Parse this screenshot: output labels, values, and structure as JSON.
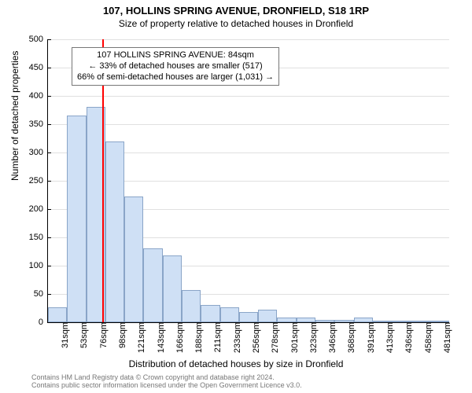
{
  "title": "107, HOLLINS SPRING AVENUE, DRONFIELD, S18 1RP",
  "subtitle": "Size of property relative to detached houses in Dronfield",
  "y_axis": {
    "label": "Number of detached properties",
    "min": 0,
    "max": 500,
    "tick_step": 50,
    "ticks": [
      0,
      50,
      100,
      150,
      200,
      250,
      300,
      350,
      400,
      450,
      500
    ]
  },
  "x_axis": {
    "label": "Distribution of detached houses by size in Dronfield",
    "ticks": [
      "31sqm",
      "53sqm",
      "76sqm",
      "98sqm",
      "121sqm",
      "143sqm",
      "166sqm",
      "188sqm",
      "211sqm",
      "233sqm",
      "256sqm",
      "278sqm",
      "301sqm",
      "323sqm",
      "346sqm",
      "368sqm",
      "391sqm",
      "413sqm",
      "436sqm",
      "458sqm",
      "481sqm"
    ]
  },
  "bars": {
    "values": [
      26,
      365,
      380,
      320,
      222,
      130,
      118,
      57,
      30,
      26,
      18,
      22,
      8,
      8,
      4,
      4,
      8,
      2,
      2,
      2,
      2
    ],
    "fill_color": "#cfe0f5",
    "border_color": "#8aa5c8",
    "width_fraction": 1.0
  },
  "marker": {
    "value_sqm": 84,
    "color": "#ff0000",
    "callout_lines": [
      "107 HOLLINS SPRING AVENUE: 84sqm",
      "← 33% of detached houses are smaller (517)",
      "66% of semi-detached houses are larger (1,031) →"
    ]
  },
  "styling": {
    "background_color": "#ffffff",
    "grid_color": "#e0e0e0",
    "axis_color": "#000000",
    "title_fontsize": 13,
    "subtitle_fontsize": 12,
    "label_fontsize": 12,
    "tick_fontsize": 11,
    "callout_fontsize": 11,
    "attribution_fontsize": 9,
    "attribution_color": "#777777",
    "font_family": "Arial, sans-serif"
  },
  "attribution": [
    "Contains HM Land Registry data © Crown copyright and database right 2024.",
    "Contains public sector information licensed under the Open Government Licence v3.0."
  ]
}
